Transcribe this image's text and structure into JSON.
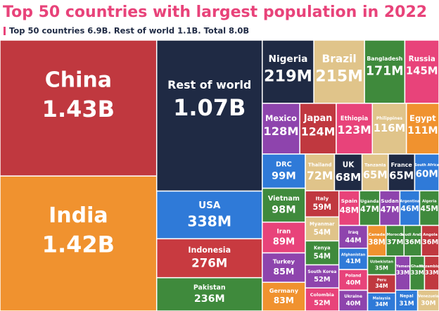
{
  "chart_data": {
    "type": "treemap",
    "title": "Top 50 countries with largest population in 2022",
    "subtitle": "Top 50 countries 6.9B. Rest of world 1.1B. Total 8.0B",
    "categories": [
      "China",
      "India",
      "Rest of world",
      "USA",
      "Indonesia",
      "Pakistan",
      "Nigeria",
      "Brazil",
      "Bangladesh",
      "Russia",
      "Mexico",
      "Japan",
      "Ethiopia",
      "Philippines",
      "Egypt",
      "DRC",
      "Vietnam",
      "Iran",
      "Turkey",
      "Germany",
      "Thailand",
      "UK",
      "Tanzania",
      "France",
      "South Africa",
      "Italy",
      "Myanmar",
      "Kenya",
      "South Korea",
      "Colombia",
      "Spain",
      "Uganda",
      "Sudan",
      "Argentina",
      "Algeria",
      "Iraq",
      "Afghanistan",
      "Poland",
      "Ukraine",
      "Canada",
      "Morocco",
      "Saudi Arabia",
      "Angola",
      "Uzbekistan",
      "Peru",
      "Malaysia",
      "Yemen",
      "Ghana",
      "Mozambique",
      "Nepal",
      "Venezuela"
    ],
    "values": [
      1430,
      1420,
      1070,
      338,
      276,
      236,
      219,
      215,
      171,
      145,
      128,
      124,
      123,
      116,
      111,
      99,
      98,
      89,
      85,
      83,
      72,
      68,
      65,
      65,
      60,
      59,
      54,
      54,
      52,
      52,
      48,
      47,
      47,
      46,
      45,
      44,
      41,
      40,
      40,
      38,
      37,
      36,
      36,
      35,
      34,
      34,
      33,
      33,
      33,
      31,
      30
    ],
    "value_labels": [
      "1.43B",
      "1.42B",
      "1.07B",
      "338M",
      "276M",
      "236M",
      "219M",
      "215M",
      "171M",
      "145M",
      "128M",
      "124M",
      "123M",
      "116M",
      "111M",
      "99M",
      "98M",
      "89M",
      "85M",
      "83M",
      "72M",
      "68M",
      "65M",
      "65M",
      "60M",
      "59M",
      "54M",
      "54M",
      "52M",
      "52M",
      "48M",
      "47M",
      "47M",
      "46M",
      "45M",
      "44M",
      "41M",
      "40M",
      "40M",
      "38M",
      "37M",
      "36M",
      "36M",
      "35M",
      "34M",
      "34M",
      "33M",
      "33M",
      "33M",
      "31M",
      "30M"
    ],
    "colors": [
      "#c0383f",
      "#f0922f",
      "#1f2a44",
      "#2f7ad8",
      "#c83a40",
      "#3f8a3c",
      "#1f2a44",
      "#e0c48a",
      "#3f8a3c",
      "#e8437a",
      "#8e44ad",
      "#c0383f",
      "#e8437a",
      "#e0c48a",
      "#f0922f",
      "#2f7ad8",
      "#3f8a3c",
      "#e8437a",
      "#8e44ad",
      "#f0922f",
      "#e0c48a",
      "#1f2a44",
      "#e0c48a",
      "#1f2a44",
      "#2f7ad8",
      "#c0383f",
      "#e0c48a",
      "#3f8a3c",
      "#8e44ad",
      "#e8437a",
      "#e8437a",
      "#3f8a3c",
      "#8e44ad",
      "#2f7ad8",
      "#3f8a3c",
      "#8e44ad",
      "#2f7ad8",
      "#e8437a",
      "#8e44ad",
      "#f0922f",
      "#3f8a3c",
      "#3f8a3c",
      "#c0383f",
      "#3f8a3c",
      "#c0383f",
      "#2f7ad8",
      "#8e44ad",
      "#3f8a3c",
      "#c0383f",
      "#2f7ad8",
      "#e0c48a"
    ]
  }
}
